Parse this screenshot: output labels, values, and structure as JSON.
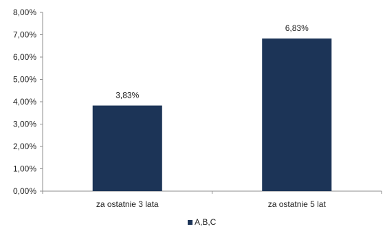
{
  "chart_data": {
    "type": "bar",
    "categories": [
      "za ostatnie 3 lata",
      "za ostatnie 5 lat"
    ],
    "series": [
      {
        "name": "A,B,C",
        "values": [
          3.83,
          6.83
        ],
        "labels": [
          "3,83%",
          "6,83%"
        ]
      }
    ],
    "ylim": [
      0,
      8
    ],
    "yticks": [
      0,
      1,
      2,
      3,
      4,
      5,
      6,
      7,
      8
    ],
    "ytick_labels": [
      "0,00%",
      "1,00%",
      "2,00%",
      "3,00%",
      "4,00%",
      "5,00%",
      "6,00%",
      "7,00%",
      "8,00%"
    ],
    "legend_position": "bottom-center",
    "grid": false,
    "bar_color": "#1c3457"
  }
}
